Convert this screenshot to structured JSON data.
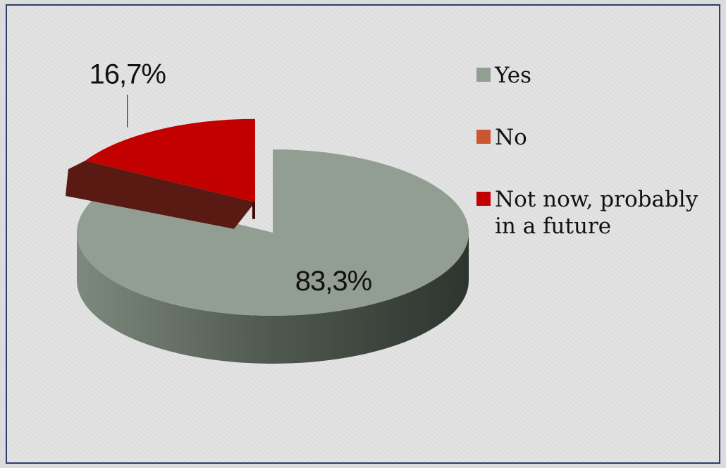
{
  "chart_data": {
    "type": "pie",
    "title": "",
    "categories": [
      "Yes",
      "No",
      "Not now, probably in a future"
    ],
    "values": [
      83.3,
      0,
      16.7
    ],
    "data_labels": [
      "83,3%",
      "",
      "16,7%"
    ],
    "colors": [
      "#939e93",
      "#cc5533",
      "#c20000"
    ],
    "exploded": [
      false,
      false,
      true
    ],
    "style": "3d",
    "legend_position": "right",
    "grid": false
  }
}
